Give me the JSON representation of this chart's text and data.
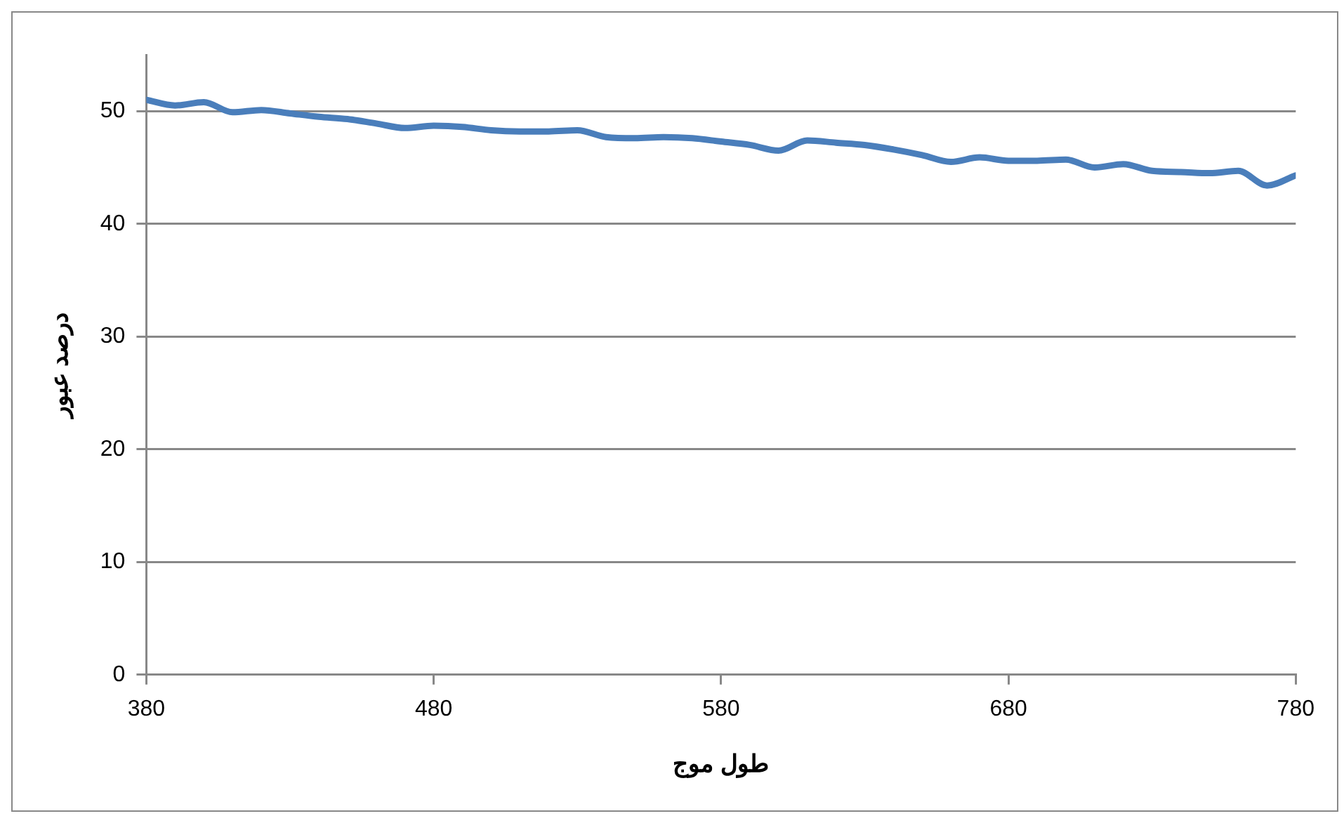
{
  "chart_data": {
    "type": "line",
    "xlabel": "طول موج",
    "ylabel": "درصد عبور",
    "x": [
      380,
      390,
      400,
      410,
      420,
      430,
      440,
      450,
      460,
      470,
      480,
      490,
      500,
      510,
      520,
      530,
      540,
      550,
      560,
      570,
      580,
      590,
      600,
      610,
      620,
      630,
      640,
      650,
      660,
      670,
      680,
      690,
      700,
      710,
      720,
      730,
      740,
      750,
      760,
      770,
      780
    ],
    "series": [
      {
        "color": "#4a7ebb",
        "values": [
          51.0,
          50.5,
          50.8,
          49.9,
          50.1,
          49.8,
          49.5,
          49.3,
          48.9,
          48.5,
          48.7,
          48.6,
          48.3,
          48.2,
          48.2,
          48.3,
          47.7,
          47.6,
          47.7,
          47.6,
          47.3,
          47.0,
          46.5,
          47.4,
          47.2,
          47.0,
          46.6,
          46.1,
          45.5,
          45.9,
          45.6,
          45.6,
          45.7,
          45.0,
          45.3,
          44.7,
          44.6,
          44.5,
          44.7,
          43.4,
          44.3
        ]
      }
    ],
    "xlim": [
      380,
      780
    ],
    "xticks": [
      380,
      480,
      580,
      680,
      780
    ],
    "ylim": [
      0,
      55
    ],
    "yticks": [
      0,
      10,
      20,
      30,
      40,
      50
    ],
    "grid": "y",
    "legend": false,
    "marker": "none",
    "line_style": "solid"
  }
}
